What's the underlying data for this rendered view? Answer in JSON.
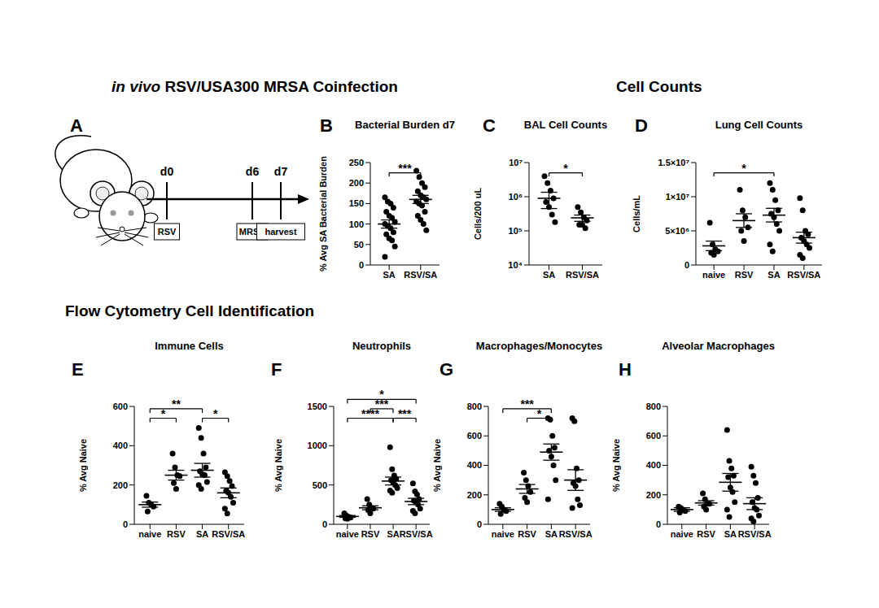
{
  "headings": [
    {
      "text_italic": "in vivo",
      "text": "RSV/USA300 MRSA Coinfection"
    },
    {
      "text": "Cell Counts"
    },
    {
      "text": "Flow Cytometry Cell Identification"
    }
  ],
  "diagram": {
    "panel": "A",
    "timeline": [
      {
        "day": "d0",
        "event": "RSV"
      },
      {
        "day": "d6",
        "event": "MRSA"
      },
      {
        "day": "d7",
        "event": "harvest"
      }
    ]
  },
  "chart_data": [
    {
      "panel": "B",
      "type": "scatter",
      "title": "Bacterial Burden d7",
      "y_label": "% Avg SA Bacterial Burden",
      "color": "#000000",
      "categories": [
        "SA",
        "RSV/SA"
      ],
      "values": [
        [
          165,
          155,
          150,
          140,
          130,
          120,
          115,
          105,
          100,
          95,
          90,
          80,
          75,
          65,
          60,
          45,
          20
        ],
        [
          230,
          215,
          200,
          190,
          180,
          170,
          165,
          160,
          155,
          150,
          145,
          130,
          120,
          110,
          100,
          85
        ]
      ],
      "mean": [
        100,
        160
      ],
      "sem": [
        10,
        10
      ],
      "ylim": [
        0,
        250
      ],
      "yticks": [
        0,
        50,
        100,
        150,
        200,
        250
      ],
      "significance": [
        {
          "from": "SA",
          "to": "RSV/SA",
          "label": "***"
        }
      ]
    },
    {
      "panel": "C",
      "type": "scatter",
      "title": "BAL Cell Counts",
      "y_label": "Cells/200 uL",
      "color": "#000000",
      "log": "y",
      "categories": [
        "SA",
        "RSV/SA"
      ],
      "values": [
        [
          4000000,
          2500000,
          1500000,
          900000,
          700000,
          500000,
          300000,
          180000
        ],
        [
          500000,
          350000,
          250000,
          200000,
          150000,
          150000,
          120000
        ]
      ],
      "mean": [
        900000,
        240000
      ],
      "sem": [
        450000,
        50000
      ],
      "ylim": [
        10000,
        10000000
      ],
      "yticks": [
        {
          "value": 10000,
          "label": "10⁴"
        },
        {
          "value": 100000,
          "label": "10⁵"
        },
        {
          "value": 1000000,
          "label": "10⁶"
        },
        {
          "value": 10000000,
          "label": "10⁷"
        }
      ],
      "significance": [
        {
          "from": "SA",
          "to": "RSV/SA",
          "label": "*"
        }
      ]
    },
    {
      "panel": "D",
      "type": "scatter",
      "title": "Lung Cell Counts",
      "y_label": "Cells/mL",
      "color": "#000000",
      "categories": [
        "naive",
        "RSV",
        "SA",
        "RSV/SA"
      ],
      "values": [
        [
          6200000,
          3000000,
          2300000,
          2000000,
          1800000,
          1500000
        ],
        [
          11000000,
          8000000,
          7000000,
          5500000,
          5000000,
          3500000
        ],
        [
          12000000,
          11000000,
          9500000,
          8000000,
          7500000,
          7000000,
          6000000,
          5000000,
          3000000,
          2000000
        ],
        [
          9800000,
          8000000,
          5000000,
          4500000,
          4000000,
          3500000,
          3000000,
          2500000,
          1500000,
          1000000
        ]
      ],
      "mean": [
        2800000,
        6500000,
        7300000,
        4000000
      ],
      "sem": [
        700000,
        1000000,
        1000000,
        800000
      ],
      "ylim": [
        0,
        15000000
      ],
      "yticks": [
        0,
        {
          "value": 5000000,
          "label": "5×10⁶"
        },
        {
          "value": 10000000,
          "label": "1×10⁷"
        },
        {
          "value": 15000000,
          "label": "1.5×10⁷"
        }
      ],
      "significance": [
        {
          "from": "naive",
          "to": "SA",
          "label": "*"
        }
      ]
    },
    {
      "panel": "E",
      "type": "scatter",
      "title": "Immune Cells",
      "y_label": "% Avg Naive",
      "color": "#000000",
      "categories": [
        "naive",
        "RSV",
        "SA",
        "RSV/SA"
      ],
      "values": [
        [
          145,
          110,
          100,
          90,
          65
        ],
        [
          360,
          290,
          250,
          245,
          210,
          180
        ],
        [
          490,
          440,
          360,
          290,
          270,
          255,
          250,
          215,
          200,
          180
        ],
        [
          265,
          245,
          220,
          195,
          170,
          160,
          140,
          110,
          80,
          55
        ]
      ],
      "mean": [
        100,
        250,
        275,
        160
      ],
      "sem": [
        13,
        25,
        35,
        25
      ],
      "ylim": [
        0,
        600
      ],
      "yticks": [
        0,
        200,
        400,
        600
      ],
      "significance": [
        {
          "from": "naive",
          "to": "RSV",
          "label": "*"
        },
        {
          "from": "naive",
          "to": "SA",
          "label": "**"
        },
        {
          "from": "SA",
          "to": "RSV/SA",
          "label": "*"
        }
      ]
    },
    {
      "panel": "F",
      "type": "scatter",
      "title": "Neutrophils",
      "y_label": "% Avg Naive",
      "color": "#000000",
      "categories": [
        "naive",
        "RSV",
        "SA",
        "RSV/SA"
      ],
      "values": [
        [
          140,
          110,
          95,
          85,
          75,
          70
        ],
        [
          320,
          250,
          210,
          200,
          180,
          140
        ],
        [
          980,
          700,
          620,
          580,
          560,
          530,
          500,
          460,
          430,
          400
        ],
        [
          520,
          420,
          380,
          320,
          300,
          280,
          250,
          200,
          170,
          140
        ]
      ],
      "mean": [
        100,
        210,
        550,
        290
      ],
      "sem": [
        12,
        25,
        50,
        40
      ],
      "ylim": [
        0,
        1500
      ],
      "yticks": [
        0,
        500,
        1000,
        1500
      ],
      "significance": [
        {
          "from": "naive",
          "to": "RSV/SA",
          "label": "*"
        },
        {
          "from": "RSV",
          "to": "SA",
          "label": "***"
        },
        {
          "from": "naive",
          "to": "SA",
          "label": "****"
        },
        {
          "from": "SA",
          "to": "RSV/SA",
          "label": "***"
        }
      ]
    },
    {
      "panel": "G",
      "type": "scatter",
      "title": "Macrophages/Monocytes",
      "y_label": "% Avg Naive",
      "color": "#000000",
      "categories": [
        "naive",
        "RSV",
        "SA",
        "RSV/SA"
      ],
      "values": [
        [
          140,
          120,
          100,
          90,
          70
        ],
        [
          350,
          300,
          260,
          220,
          180,
          150
        ],
        [
          720,
          710,
          600,
          520,
          500,
          460,
          400,
          300,
          170
        ],
        [
          720,
          700,
          380,
          300,
          280,
          260,
          170,
          130,
          110
        ]
      ],
      "mean": [
        100,
        240,
        490,
        300
      ],
      "sem": [
        12,
        30,
        55,
        70
      ],
      "ylim": [
        0,
        800
      ],
      "yticks": [
        0,
        200,
        400,
        600,
        800
      ],
      "significance": [
        {
          "from": "naive",
          "to": "SA",
          "label": "***"
        },
        {
          "from": "RSV",
          "to": "SA",
          "label": "*"
        }
      ]
    },
    {
      "panel": "H",
      "type": "scatter",
      "title": "Alveolar Macrophages",
      "y_label": "% Avg Naive",
      "color": "#000000",
      "categories": [
        "naive",
        "RSV",
        "SA",
        "RSV/SA"
      ],
      "values": [
        [
          120,
          110,
          100,
          90,
          80
        ],
        [
          210,
          170,
          140,
          140,
          120,
          100
        ],
        [
          640,
          430,
          380,
          330,
          320,
          250,
          220,
          150,
          100,
          50
        ],
        [
          390,
          330,
          280,
          180,
          150,
          110,
          100,
          60,
          40,
          20
        ]
      ],
      "mean": [
        100,
        145,
        285,
        140
      ],
      "sem": [
        12,
        15,
        60,
        40
      ],
      "ylim": [
        0,
        800
      ],
      "yticks": [
        0,
        200,
        400,
        600,
        800
      ],
      "significance": []
    }
  ]
}
